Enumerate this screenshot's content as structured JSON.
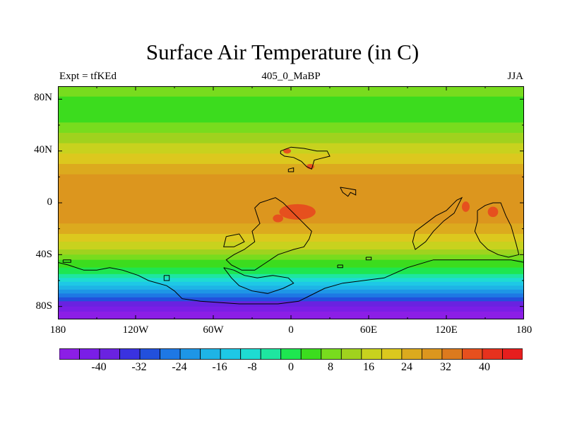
{
  "title": "Surface Air Temperature (in C)",
  "left_annotation": "Expt = tfKEd",
  "center_annotation": "405_0_MaBP",
  "right_annotation": "JJA",
  "lat_ticks": [
    "80N",
    "40N",
    "0",
    "40S",
    "80S"
  ],
  "lon_ticks": [
    "180",
    "120W",
    "60W",
    "0",
    "60E",
    "120E",
    "180"
  ],
  "colorbar": {
    "labels": [
      "-40",
      "-32",
      "-24",
      "-16",
      "-8",
      "0",
      "8",
      "16",
      "24",
      "32",
      "40"
    ],
    "colors": [
      "#8c1ee6",
      "#7a1ee6",
      "#6a22e0",
      "#3a32e0",
      "#2250dc",
      "#1e78e4",
      "#1e96e6",
      "#1eb4e6",
      "#1ec8e6",
      "#1edcd2",
      "#1ee6a0",
      "#1ee650",
      "#3cdc1e",
      "#78dc1e",
      "#a0d21e",
      "#c8d21e",
      "#dcc81e",
      "#dcaa1e",
      "#dc961e",
      "#dc7a1e",
      "#e6501e",
      "#e6321e",
      "#e61e1e"
    ]
  },
  "lat_bands": [
    {
      "lat": 90,
      "color": "#78dc1e"
    },
    {
      "lat": 82,
      "color": "#3cdc1e"
    },
    {
      "lat": 72,
      "color": "#3cdc1e"
    },
    {
      "lat": 62,
      "color": "#78dc1e"
    },
    {
      "lat": 54,
      "color": "#a0d21e"
    },
    {
      "lat": 46,
      "color": "#c8d21e"
    },
    {
      "lat": 38,
      "color": "#dcc81e"
    },
    {
      "lat": 30,
      "color": "#dcaa1e"
    },
    {
      "lat": 22,
      "color": "#dc961e"
    },
    {
      "lat": -16,
      "color": "#dcaa1e"
    },
    {
      "lat": -24,
      "color": "#dcc81e"
    },
    {
      "lat": -30,
      "color": "#c8d21e"
    },
    {
      "lat": -36,
      "color": "#a0d21e"
    },
    {
      "lat": -40,
      "color": "#78dc1e"
    },
    {
      "lat": -44,
      "color": "#3cdc1e"
    },
    {
      "lat": -50,
      "color": "#1ee650"
    },
    {
      "lat": -55,
      "color": "#1ee6a0"
    },
    {
      "lat": -58,
      "color": "#1edcd2"
    },
    {
      "lat": -61,
      "color": "#1ec8e6"
    },
    {
      "lat": -64,
      "color": "#1eb4e6"
    },
    {
      "lat": -67,
      "color": "#1e96e6"
    },
    {
      "lat": -70,
      "color": "#1e78e4"
    },
    {
      "lat": -73,
      "color": "#2250dc"
    },
    {
      "lat": -76,
      "color": "#6a22e0"
    },
    {
      "lat": -80,
      "color": "#7a1ee6"
    },
    {
      "lat": -84,
      "color": "#8c1ee6"
    }
  ],
  "hot_spots": [
    {
      "lon": 5,
      "lat": -7,
      "rlon": 14,
      "rlat": 6,
      "color": "#e6501e"
    },
    {
      "lon": -10,
      "lat": -12,
      "rlon": 4,
      "rlat": 3,
      "color": "#e6501e"
    },
    {
      "lon": 135,
      "lat": -3,
      "rlon": 3,
      "rlat": 4,
      "color": "#e6501e"
    },
    {
      "lon": 156,
      "lat": -7,
      "rlon": 4,
      "rlat": 4,
      "color": "#e6501e"
    },
    {
      "lon": -3,
      "lat": 40,
      "rlon": 3,
      "rlat": 2,
      "color": "#e6501e"
    },
    {
      "lon": 15,
      "lat": 28,
      "rlon": 3,
      "rlat": 2,
      "color": "#e6501e"
    }
  ],
  "coastlines": [
    [
      [
        -8,
        40
      ],
      [
        0,
        43
      ],
      [
        10,
        42
      ],
      [
        20,
        40
      ],
      [
        28,
        40
      ],
      [
        30,
        36
      ],
      [
        22,
        34
      ],
      [
        18,
        33
      ],
      [
        16,
        26
      ],
      [
        12,
        28
      ],
      [
        8,
        32
      ],
      [
        2,
        35
      ],
      [
        -5,
        36
      ],
      [
        -8,
        38
      ],
      [
        -8,
        40
      ]
    ],
    [
      [
        -2,
        26
      ],
      [
        2,
        27
      ],
      [
        2,
        24
      ],
      [
        -2,
        24
      ],
      [
        -2,
        26
      ]
    ],
    [
      [
        38,
        12
      ],
      [
        44,
        11
      ],
      [
        50,
        10
      ],
      [
        50,
        6
      ],
      [
        46,
        8
      ],
      [
        44,
        5
      ],
      [
        40,
        8
      ],
      [
        38,
        12
      ]
    ],
    [
      [
        -24,
        0
      ],
      [
        -12,
        4
      ],
      [
        -6,
        0
      ],
      [
        -2,
        -4
      ],
      [
        4,
        -10
      ],
      [
        8,
        -14
      ],
      [
        12,
        -18
      ],
      [
        16,
        -22
      ],
      [
        14,
        -28
      ],
      [
        10,
        -34
      ],
      [
        2,
        -36
      ],
      [
        -4,
        -38
      ],
      [
        -10,
        -40
      ],
      [
        -16,
        -44
      ],
      [
        -22,
        -48
      ],
      [
        -28,
        -52
      ],
      [
        -38,
        -52
      ],
      [
        -46,
        -48
      ],
      [
        -50,
        -44
      ],
      [
        -44,
        -40
      ],
      [
        -36,
        -36
      ],
      [
        -28,
        -30
      ],
      [
        -30,
        -22
      ],
      [
        -24,
        -16
      ],
      [
        -26,
        -10
      ],
      [
        -28,
        -4
      ],
      [
        -24,
        0
      ]
    ],
    [
      [
        -50,
        -26
      ],
      [
        -40,
        -24
      ],
      [
        -36,
        -30
      ],
      [
        -44,
        -34
      ],
      [
        -52,
        -34
      ],
      [
        -50,
        -26
      ]
    ],
    [
      [
        -52,
        -50
      ],
      [
        -46,
        -58
      ],
      [
        -40,
        -64
      ],
      [
        -30,
        -68
      ],
      [
        -18,
        -70
      ],
      [
        -6,
        -66
      ],
      [
        2,
        -62
      ],
      [
        -2,
        -58
      ],
      [
        -14,
        -56
      ],
      [
        -26,
        -58
      ],
      [
        -36,
        -56
      ],
      [
        -44,
        -52
      ],
      [
        -52,
        -50
      ]
    ],
    [
      [
        96,
        -22
      ],
      [
        104,
        -16
      ],
      [
        112,
        -10
      ],
      [
        120,
        -6
      ],
      [
        124,
        -2
      ],
      [
        128,
        2
      ],
      [
        132,
        4
      ],
      [
        130,
        0
      ],
      [
        126,
        -8
      ],
      [
        118,
        -14
      ],
      [
        110,
        -22
      ],
      [
        104,
        -30
      ],
      [
        96,
        -36
      ],
      [
        94,
        -30
      ],
      [
        96,
        -22
      ]
    ],
    [
      [
        144,
        -6
      ],
      [
        150,
        -2
      ],
      [
        156,
        0
      ],
      [
        162,
        0
      ],
      [
        166,
        -10
      ],
      [
        170,
        -18
      ],
      [
        174,
        -32
      ],
      [
        176,
        -40
      ],
      [
        168,
        -42
      ],
      [
        160,
        -40
      ],
      [
        152,
        -36
      ],
      [
        146,
        -30
      ],
      [
        142,
        -22
      ],
      [
        144,
        -14
      ],
      [
        144,
        -6
      ]
    ],
    [
      [
        -180,
        -46
      ],
      [
        -172,
        -48
      ],
      [
        -160,
        -52
      ],
      [
        -150,
        -52
      ],
      [
        -140,
        -50
      ],
      [
        -130,
        -52
      ],
      [
        -118,
        -56
      ],
      [
        -110,
        -60
      ],
      [
        -96,
        -64
      ],
      [
        -90,
        -68
      ],
      [
        -84,
        -74
      ],
      [
        -70,
        -76
      ],
      [
        -40,
        -78
      ],
      [
        -10,
        -78
      ],
      [
        6,
        -76
      ],
      [
        14,
        -72
      ],
      [
        26,
        -66
      ],
      [
        40,
        -62
      ],
      [
        56,
        -60
      ],
      [
        72,
        -58
      ],
      [
        90,
        -50
      ],
      [
        110,
        -44
      ],
      [
        130,
        -44
      ],
      [
        150,
        -44
      ],
      [
        170,
        -44
      ],
      [
        180,
        -46
      ]
    ],
    [
      [
        -176,
        -44
      ],
      [
        -170,
        -44
      ],
      [
        -170,
        -46
      ],
      [
        -176,
        -46
      ],
      [
        -176,
        -44
      ]
    ],
    [
      [
        -98,
        -56
      ],
      [
        -94,
        -56
      ],
      [
        -94,
        -60
      ],
      [
        -98,
        -60
      ],
      [
        -98,
        -56
      ]
    ],
    [
      [
        36,
        -48
      ],
      [
        40,
        -48
      ],
      [
        40,
        -50
      ],
      [
        36,
        -50
      ],
      [
        36,
        -48
      ]
    ],
    [
      [
        58,
        -42
      ],
      [
        62,
        -42
      ],
      [
        62,
        -44
      ],
      [
        58,
        -44
      ],
      [
        58,
        -42
      ]
    ]
  ]
}
